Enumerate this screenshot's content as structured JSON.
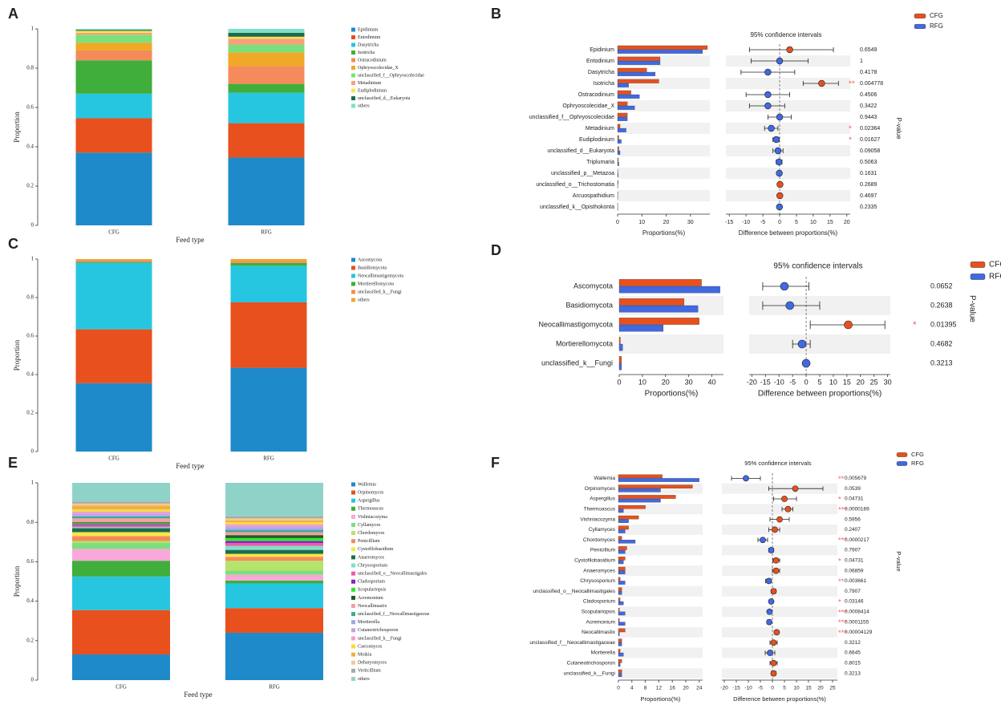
{
  "chart_data": [
    {
      "type": "stacked_bar",
      "panel": "A",
      "categories": [
        "CFG",
        "RFG"
      ],
      "xlabel": "Feed type",
      "ylabel": "Proportion",
      "ylim": [
        0,
        1
      ],
      "yticks": [
        0,
        0.2,
        0.4,
        0.6,
        0.8,
        1
      ],
      "series": [
        {
          "name": "Epidinium",
          "color": "#1f8ac9",
          "values": [
            0.37,
            0.345
          ]
        },
        {
          "name": "Entodinium",
          "color": "#e8501d",
          "values": [
            0.175,
            0.175
          ]
        },
        {
          "name": "Dasytricha",
          "color": "#26c6e0",
          "values": [
            0.125,
            0.155
          ]
        },
        {
          "name": "Isotricha",
          "color": "#3fae3a",
          "values": [
            0.17,
            0.045
          ]
        },
        {
          "name": "Ostracodinium",
          "color": "#f58b5a",
          "values": [
            0.05,
            0.09
          ]
        },
        {
          "name": "Ophryoscolecidae_X",
          "color": "#f0a828",
          "values": [
            0.04,
            0.07
          ]
        },
        {
          "name": "unclassified_f__Ophryoscolecidae",
          "color": "#7be07a",
          "values": [
            0.04,
            0.04
          ]
        },
        {
          "name": "Metadinium",
          "color": "#f7a07a",
          "values": [
            0.01,
            0.03
          ]
        },
        {
          "name": "Eudiplodinium",
          "color": "#f7e64a",
          "values": [
            0.01,
            0.01
          ]
        },
        {
          "name": "unclassified_d__Eukaryota",
          "color": "#1d6b4d",
          "values": [
            0.005,
            0.02
          ]
        },
        {
          "name": "others",
          "color": "#7fe0c9",
          "values": [
            0.005,
            0.02
          ]
        }
      ]
    },
    {
      "type": "extended_error_bar",
      "panel": "B",
      "title": "95% confidence intervals",
      "xlabel": "Proportions(%)",
      "categories": [
        "Epidinium",
        "Entodinium",
        "Dasytricha",
        "Isotricha",
        "Ostracodinium",
        "Ophryoscolecidae_X",
        "unclassified_f__Ophryoscolecidae",
        "Metadinium",
        "Eudiplodinium",
        "unclassified_d__Eukaryota",
        "Triplumaria",
        "unclassified_p__Metazoa",
        "unclassified_o__Trichostomatia",
        "Arcuospathidium",
        "unclassified_k__Opisthokonta"
      ],
      "xlim": [
        0,
        38
      ],
      "xticks": [
        0,
        10,
        20,
        30
      ],
      "series": [
        {
          "name": "CFG",
          "color": "#e8501d",
          "values": [
            37,
            17.5,
            12,
            17,
            5.5,
            4,
            4,
            1,
            0.5,
            0.5,
            0.3,
            0.1,
            0.2,
            0.1,
            0.05
          ]
        },
        {
          "name": "RFG",
          "color": "#4169e1",
          "values": [
            35,
            17.5,
            15.5,
            4.5,
            9,
            7,
            4,
            3.5,
            1.5,
            1,
            0.5,
            0.2,
            0.1,
            0.05,
            0.1
          ]
        }
      ],
      "difference": {
        "xlabel": "Difference between proportions(%)",
        "xlim": [
          -16,
          21
        ],
        "xticks": [
          -15,
          -10,
          -5,
          0,
          5,
          10,
          15,
          20
        ],
        "values": [
          3,
          0,
          -3.5,
          12.5,
          -3.5,
          -3.5,
          0,
          -2.5,
          -1,
          -0.5,
          -0.2,
          -0.1,
          0.1,
          0.05,
          -0.05
        ],
        "ci_lower": [
          -9,
          -8.5,
          -11.5,
          7,
          -10,
          -9,
          -3.5,
          -4.5,
          -2,
          -2,
          -1,
          -0.6,
          -0.3,
          -0.3,
          -0.4
        ],
        "ci_upper": [
          16,
          8.5,
          4.5,
          17.5,
          3,
          1.5,
          3.5,
          -0.5,
          -0.1,
          1,
          0.7,
          0.4,
          0.5,
          0.4,
          0.3
        ]
      },
      "p_label": "P-value",
      "p_values": [
        0.6549,
        1,
        0.4178,
        0.004778,
        0.4506,
        0.3422,
        0.9443,
        0.02364,
        0.01627,
        0.09058,
        0.5063,
        0.1631,
        0.2689,
        0.4697,
        0.2335
      ],
      "significance": [
        null,
        null,
        null,
        "**",
        null,
        null,
        null,
        "*",
        "*",
        null,
        null,
        null,
        null,
        null,
        null
      ]
    },
    {
      "type": "stacked_bar",
      "panel": "C",
      "categories": [
        "CFG",
        "RFG"
      ],
      "xlabel": "Feed type",
      "ylabel": "Proportion",
      "ylim": [
        0,
        1
      ],
      "yticks": [
        0,
        0.2,
        0.4,
        0.6,
        0.8,
        1
      ],
      "series": [
        {
          "name": "Ascomycota",
          "color": "#1f8ac9",
          "values": [
            0.355,
            0.435
          ]
        },
        {
          "name": "Basidiomycota",
          "color": "#e8501d",
          "values": [
            0.28,
            0.34
          ]
        },
        {
          "name": "Neocallimastigomycota",
          "color": "#26c6e0",
          "values": [
            0.345,
            0.19
          ]
        },
        {
          "name": "Mortierellomycota",
          "color": "#3fae3a",
          "values": [
            0.005,
            0.015
          ]
        },
        {
          "name": "unclassified_k__Fungi",
          "color": "#f58b5a",
          "values": [
            0.01,
            0.01
          ]
        },
        {
          "name": "others",
          "color": "#f0a828",
          "values": [
            0.005,
            0.01
          ]
        }
      ]
    },
    {
      "type": "extended_error_bar",
      "panel": "D",
      "title": "95% confidence intervals",
      "xlabel": "Proportions(%)",
      "categories": [
        "Ascomycota",
        "Basidiomycota",
        "Neocallimastigomycota",
        "Mortierellomycota",
        "unclassified_k__Fungi"
      ],
      "xlim": [
        0,
        45
      ],
      "xticks": [
        0,
        10,
        20,
        30,
        40
      ],
      "series": [
        {
          "name": "CFG",
          "color": "#e8501d",
          "values": [
            35.5,
            28,
            34.5,
            0.5,
            1
          ]
        },
        {
          "name": "RFG",
          "color": "#4169e1",
          "values": [
            43.5,
            34,
            19,
            1.5,
            1
          ]
        }
      ],
      "difference": {
        "xlabel": "Difference between proportions(%)",
        "xlim": [
          -21,
          31
        ],
        "xticks": [
          -20,
          -15,
          -10,
          -5,
          0,
          5,
          10,
          15,
          20,
          25,
          30
        ],
        "values": [
          -8,
          -6,
          15.5,
          -1.5,
          0
        ],
        "ci_lower": [
          -16,
          -16,
          1.5,
          -5,
          -0.5
        ],
        "ci_upper": [
          1,
          5,
          29,
          1.5,
          0.5
        ]
      },
      "p_label": "P-value",
      "p_values": [
        0.0652,
        0.2638,
        0.01395,
        0.4682,
        0.3213
      ],
      "significance": [
        null,
        null,
        "*",
        null,
        null
      ]
    },
    {
      "type": "stacked_bar",
      "panel": "E",
      "categories": [
        "CFG",
        "RFG"
      ],
      "xlabel": "Feed type",
      "ylabel": "Proportion",
      "ylim": [
        0,
        1
      ],
      "yticks": [
        0,
        0.2,
        0.4,
        0.6,
        0.8,
        1
      ],
      "series": [
        {
          "name": "Wallemia",
          "color": "#1f8ac9",
          "values": [
            0.13,
            0.24
          ]
        },
        {
          "name": "Orpinomyces",
          "color": "#e8501d",
          "values": [
            0.225,
            0.125
          ]
        },
        {
          "name": "Aspergillus",
          "color": "#26c6e0",
          "values": [
            0.17,
            0.125
          ]
        },
        {
          "name": "Thermoascus",
          "color": "#3fae3a",
          "values": [
            0.08,
            0.015
          ]
        },
        {
          "name": "Vishniacozyma",
          "color": "#f7a8d8",
          "values": [
            0.06,
            0.03
          ]
        },
        {
          "name": "Cyllamyces",
          "color": "#7be07a",
          "values": [
            0.03,
            0.02
          ]
        },
        {
          "name": "Chordomyces",
          "color": "#b6e36b",
          "values": [
            0.01,
            0.05
          ]
        },
        {
          "name": "Penicillium",
          "color": "#f58b5a",
          "values": [
            0.025,
            0.02
          ]
        },
        {
          "name": "Cystofilobasidium",
          "color": "#f7e64a",
          "values": [
            0.02,
            0.015
          ]
        },
        {
          "name": "Anaeromyces",
          "color": "#1d6b4d",
          "values": [
            0.02,
            0.02
          ]
        },
        {
          "name": "Chrysosporium",
          "color": "#7fe0c9",
          "values": [
            0.005,
            0.02
          ]
        },
        {
          "name": "unclassified_o__Neocallimastigales",
          "color": "#e85fa8",
          "values": [
            0.01,
            0.015
          ]
        },
        {
          "name": "Cladosporium",
          "color": "#8e1fc9",
          "values": [
            0.005,
            0.01
          ]
        },
        {
          "name": "Scopulariopsis",
          "color": "#2ee82e",
          "values": [
            0.005,
            0.015
          ]
        },
        {
          "name": "Acremonium",
          "color": "#1e5e1e",
          "values": [
            0.005,
            0.015
          ]
        },
        {
          "name": "Neocallimastix",
          "color": "#f5a0a0",
          "values": [
            0.02,
            0.015
          ]
        },
        {
          "name": "unclassified_f__Neocallimastigaceae",
          "color": "#3fa89a",
          "values": [
            0.01,
            0.01
          ]
        },
        {
          "name": "Mortierella",
          "color": "#9aa8e8",
          "values": [
            0.005,
            0.01
          ]
        },
        {
          "name": "Cutaneotrichosporon",
          "color": "#c8a0e8",
          "values": [
            0.01,
            0.01
          ]
        },
        {
          "name": "unclassified_k__Fungi",
          "color": "#f0a0c8",
          "values": [
            0.01,
            0.01
          ]
        },
        {
          "name": "Caecomyces",
          "color": "#f5e030",
          "values": [
            0.01,
            0.01
          ]
        },
        {
          "name": "Mrakia",
          "color": "#f0b040",
          "values": [
            0.02,
            0.01
          ]
        },
        {
          "name": "Debaryomyces",
          "color": "#f5c890",
          "values": [
            0.01,
            0.01
          ]
        },
        {
          "name": "Verticillium",
          "color": "#a8a8a8",
          "values": [
            0.01,
            0.01
          ]
        },
        {
          "name": "others",
          "color": "#8fd3c8",
          "values": [
            0.095,
            0.17
          ]
        }
      ]
    },
    {
      "type": "extended_error_bar",
      "panel": "F",
      "title": "95% confidence intervals",
      "xlabel": "Proportions(%)",
      "categories": [
        "Wallemia",
        "Orpinomyces",
        "Aspergillus",
        "Thermoascus",
        "Vishniacozyma",
        "Cyllamyces",
        "Chordomyces",
        "Penicillium",
        "Cystofilobasidium",
        "Anaeromyces",
        "Chrysosporium",
        "unclassified_o__Neocallimastigales",
        "Cladosporium",
        "Scopulariopsis",
        "Acremonium",
        "Neocallimastix",
        "unclassified_f__Neocallimastigaceae",
        "Mortierella",
        "Cutaneotrichosporon",
        "unclassified_k__Fungi"
      ],
      "xlim": [
        0,
        25
      ],
      "xticks": [
        0,
        4,
        8,
        12,
        16,
        20,
        24
      ],
      "series": [
        {
          "name": "CFG",
          "color": "#e8501d",
          "values": [
            13,
            22,
            17,
            8,
            6,
            3,
            1,
            2.5,
            2,
            2,
            0.5,
            1,
            0.5,
            0.3,
            0.3,
            2,
            1,
            0.5,
            1,
            1
          ]
        },
        {
          "name": "RFG",
          "color": "#4169e1",
          "values": [
            24,
            12.5,
            12.5,
            1.5,
            3,
            2,
            5,
            2,
            1.5,
            2,
            2,
            1,
            1.5,
            2,
            2,
            0.3,
            1,
            1.5,
            0.5,
            1
          ]
        }
      ],
      "difference": {
        "xlabel": "Difference between proportions(%)",
        "xlim": [
          -21,
          27
        ],
        "xticks": [
          -20,
          -15,
          -10,
          -5,
          0,
          5,
          10,
          15,
          20,
          25
        ],
        "values": [
          -11,
          9.5,
          5,
          6.5,
          3,
          1,
          -4,
          -0.5,
          1.5,
          1.5,
          -1.5,
          0.5,
          -0.5,
          -1.2,
          -1.3,
          1.8,
          0.5,
          -1,
          0.5,
          0.5
        ],
        "ci_lower": [
          -17,
          -1.5,
          0.5,
          4,
          -1,
          -1.5,
          -6,
          -1.5,
          0.2,
          0,
          -2.8,
          -0.5,
          -1,
          -2,
          -2.2,
          1,
          -1,
          -3,
          -1,
          -0.5
        ],
        "ci_upper": [
          -5,
          21,
          10,
          8.5,
          7,
          3,
          -2,
          0.5,
          3,
          3,
          -0.5,
          1.5,
          -0.1,
          -0.5,
          -0.5,
          2.6,
          2,
          1,
          2,
          1.5
        ]
      },
      "p_label": "P-value",
      "p_values": [
        0.005679,
        0.0539,
        0.04731,
        1.69e-05,
        0.5956,
        0.2407,
        2.17e-05,
        0.7907,
        0.04731,
        0.06859,
        0.003661,
        0.7907,
        0.03146,
        0.0008414,
        0.0001155,
        4.129e-05,
        0.3212,
        0.6645,
        0.8015,
        0.3213
      ],
      "significance": [
        "**",
        null,
        "*",
        "***",
        null,
        null,
        "***",
        null,
        "*",
        null,
        "**",
        null,
        "*",
        "***",
        "***",
        "***",
        null,
        null,
        null,
        null
      ]
    }
  ]
}
